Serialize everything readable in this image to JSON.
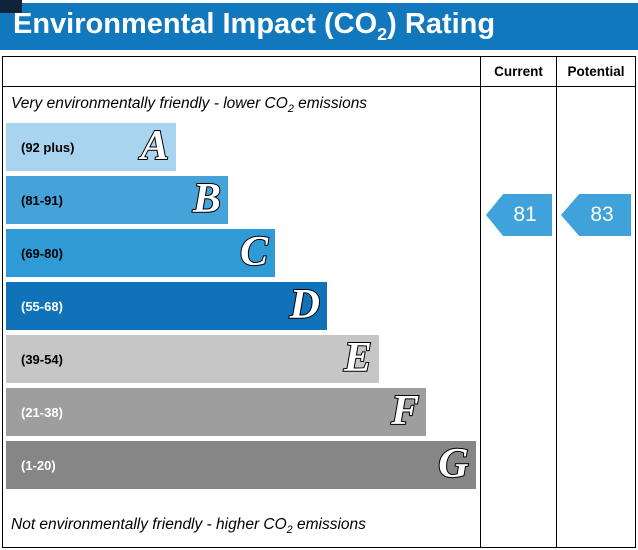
{
  "header": {
    "title": {
      "prefix": "Environmental Impact (CO",
      "sub": "2",
      "suffix": ") Rating"
    },
    "background": "#1178be"
  },
  "table": {
    "current_label": "Current",
    "potential_label": "Potential"
  },
  "captions": {
    "top": {
      "prefix": "Very environmentally friendly - lower CO",
      "sub": "2",
      "suffix": " emissions"
    },
    "bottom": {
      "prefix": "Not environmentally friendly - higher CO",
      "sub": "2",
      "suffix": " emissions"
    }
  },
  "chart_data": {
    "type": "bar",
    "title": "Environmental Impact (CO2) Rating",
    "bands": [
      {
        "letter": "A",
        "range_label": "(92 plus)",
        "color": "#a9d4ef",
        "width_pct": 36,
        "label_color": "#000000"
      },
      {
        "letter": "B",
        "range_label": "(81-91)",
        "color": "#45a3da",
        "width_pct": 47,
        "label_color": "#000000"
      },
      {
        "letter": "C",
        "range_label": "(69-80)",
        "color": "#2f9bd6",
        "width_pct": 57,
        "label_color": "#000000"
      },
      {
        "letter": "D",
        "range_label": "(55-68)",
        "color": "#1072b9",
        "width_pct": 68,
        "label_color": "#ffffff"
      },
      {
        "letter": "E",
        "range_label": "(39-54)",
        "color": "#c6c6c6",
        "width_pct": 79,
        "label_color": "#000000"
      },
      {
        "letter": "F",
        "range_label": "(21-38)",
        "color": "#9e9e9e",
        "width_pct": 89,
        "label_color": "#ffffff"
      },
      {
        "letter": "G",
        "range_label": "(1-20)",
        "color": "#868686",
        "width_pct": 99.5,
        "label_color": "#ffffff"
      }
    ],
    "markers": {
      "current": {
        "value": "81",
        "band": "B",
        "color": "#3fa2da"
      },
      "potential": {
        "value": "83",
        "band": "B",
        "color": "#3fa2da"
      }
    }
  }
}
